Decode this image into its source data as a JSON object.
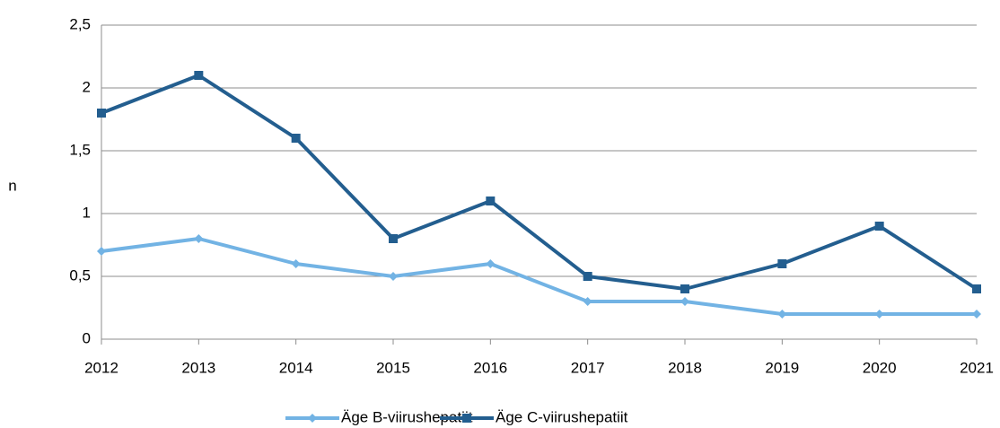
{
  "chart_data": {
    "type": "line",
    "y_label": "n",
    "categories": [
      "2012",
      "2013",
      "2014",
      "2015",
      "2016",
      "2017",
      "2018",
      "2019",
      "2020",
      "2021"
    ],
    "series": [
      {
        "name": "Äge B-viirushepatiit",
        "color": "#72b3e4",
        "marker": "diamond",
        "values": [
          0.7,
          0.8,
          0.6,
          0.5,
          0.6,
          0.3,
          0.3,
          0.2,
          0.2,
          0.2
        ]
      },
      {
        "name": "Äge C-viirushepatiit",
        "color": "#235e8f",
        "marker": "square",
        "values": [
          1.8,
          2.1,
          1.6,
          0.8,
          1.1,
          0.5,
          0.4,
          0.6,
          0.9,
          0.4
        ]
      }
    ],
    "ylim": [
      0,
      2.5
    ],
    "yticks": [
      0,
      {
        "value": 0.5,
        "label": "0,5"
      },
      1,
      {
        "value": 1.5,
        "label": "1,5"
      },
      2,
      {
        "value": 2.5,
        "label": "2,5"
      }
    ],
    "grid": true,
    "legend": "bottom"
  }
}
